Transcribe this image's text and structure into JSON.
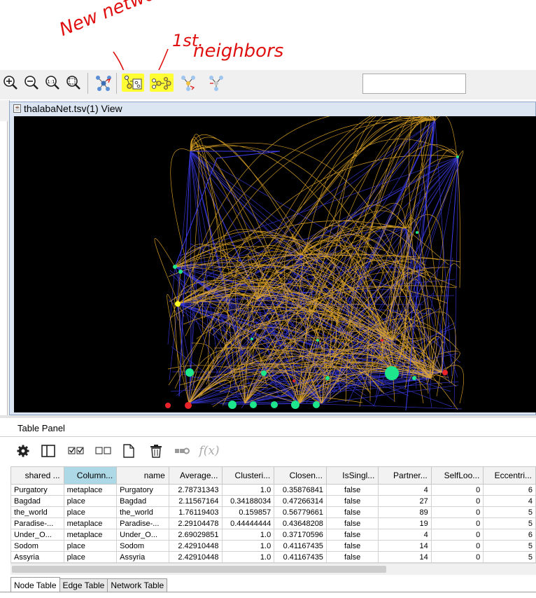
{
  "annotations": {
    "new_network": "New network",
    "first": "1st.",
    "neighbors": "neighbors"
  },
  "toolbar": {
    "buttons": [
      {
        "name": "zoom-in-icon",
        "glyph": "⊕"
      },
      {
        "name": "zoom-out-icon",
        "glyph": "⊖"
      },
      {
        "name": "zoom-actual-icon",
        "glyph": "1:1"
      },
      {
        "name": "zoom-selected-icon",
        "glyph": "🔍"
      }
    ],
    "search_value": ""
  },
  "view": {
    "title": "thalabaNet.tsv(1) View",
    "colors": {
      "background": "#000000",
      "edge_blue": "#3d3df2",
      "edge_orange": "#f2b42a",
      "node_green": "#1ee68c",
      "node_red": "#e8232a",
      "node_yellow": "#ffff22"
    }
  },
  "table_panel": {
    "title": "Table Panel",
    "toolbar_icons": [
      "gear-icon",
      "columns-icon",
      "select-all-icon",
      "deselect-all-icon",
      "new-column-icon",
      "delete-icon",
      "link-icon",
      "function-builder-icon"
    ],
    "fx_label": "f(x)",
    "columns": [
      "shared ...",
      "Column...",
      "name",
      "Average...",
      "Clusteri...",
      "Closen...",
      "IsSingl...",
      "Partner...",
      "SelfLoo...",
      "Eccentri..."
    ],
    "rows": [
      [
        "Purgatory",
        "metaplace",
        "Purgatory",
        "2.78731343",
        "1.0",
        "0.35876841",
        "false",
        "4",
        "0",
        "6"
      ],
      [
        "Bagdad",
        "place",
        "Bagdad",
        "2.11567164",
        "0.34188034",
        "0.47266314",
        "false",
        "27",
        "0",
        "4"
      ],
      [
        "the_world",
        "place",
        "the_world",
        "1.76119403",
        "0.159857",
        "0.56779661",
        "false",
        "89",
        "0",
        "5"
      ],
      [
        "Paradise-...",
        "metaplace",
        "Paradise-...",
        "2.29104478",
        "0.44444444",
        "0.43648208",
        "false",
        "19",
        "0",
        "5"
      ],
      [
        "Under_O...",
        "metaplace",
        "Under_O...",
        "2.69029851",
        "1.0",
        "0.37170596",
        "false",
        "4",
        "0",
        "6"
      ],
      [
        "Sodom",
        "place",
        "Sodom",
        "2.42910448",
        "1.0",
        "0.41167435",
        "false",
        "14",
        "0",
        "5"
      ],
      [
        "Assyria",
        "place",
        "Assyria",
        "2.42910448",
        "1.0",
        "0.41167435",
        "false",
        "14",
        "0",
        "5"
      ]
    ],
    "tabs": [
      "Node Table",
      "Edge Table",
      "Network Table"
    ],
    "active_tab": "Node Table"
  }
}
